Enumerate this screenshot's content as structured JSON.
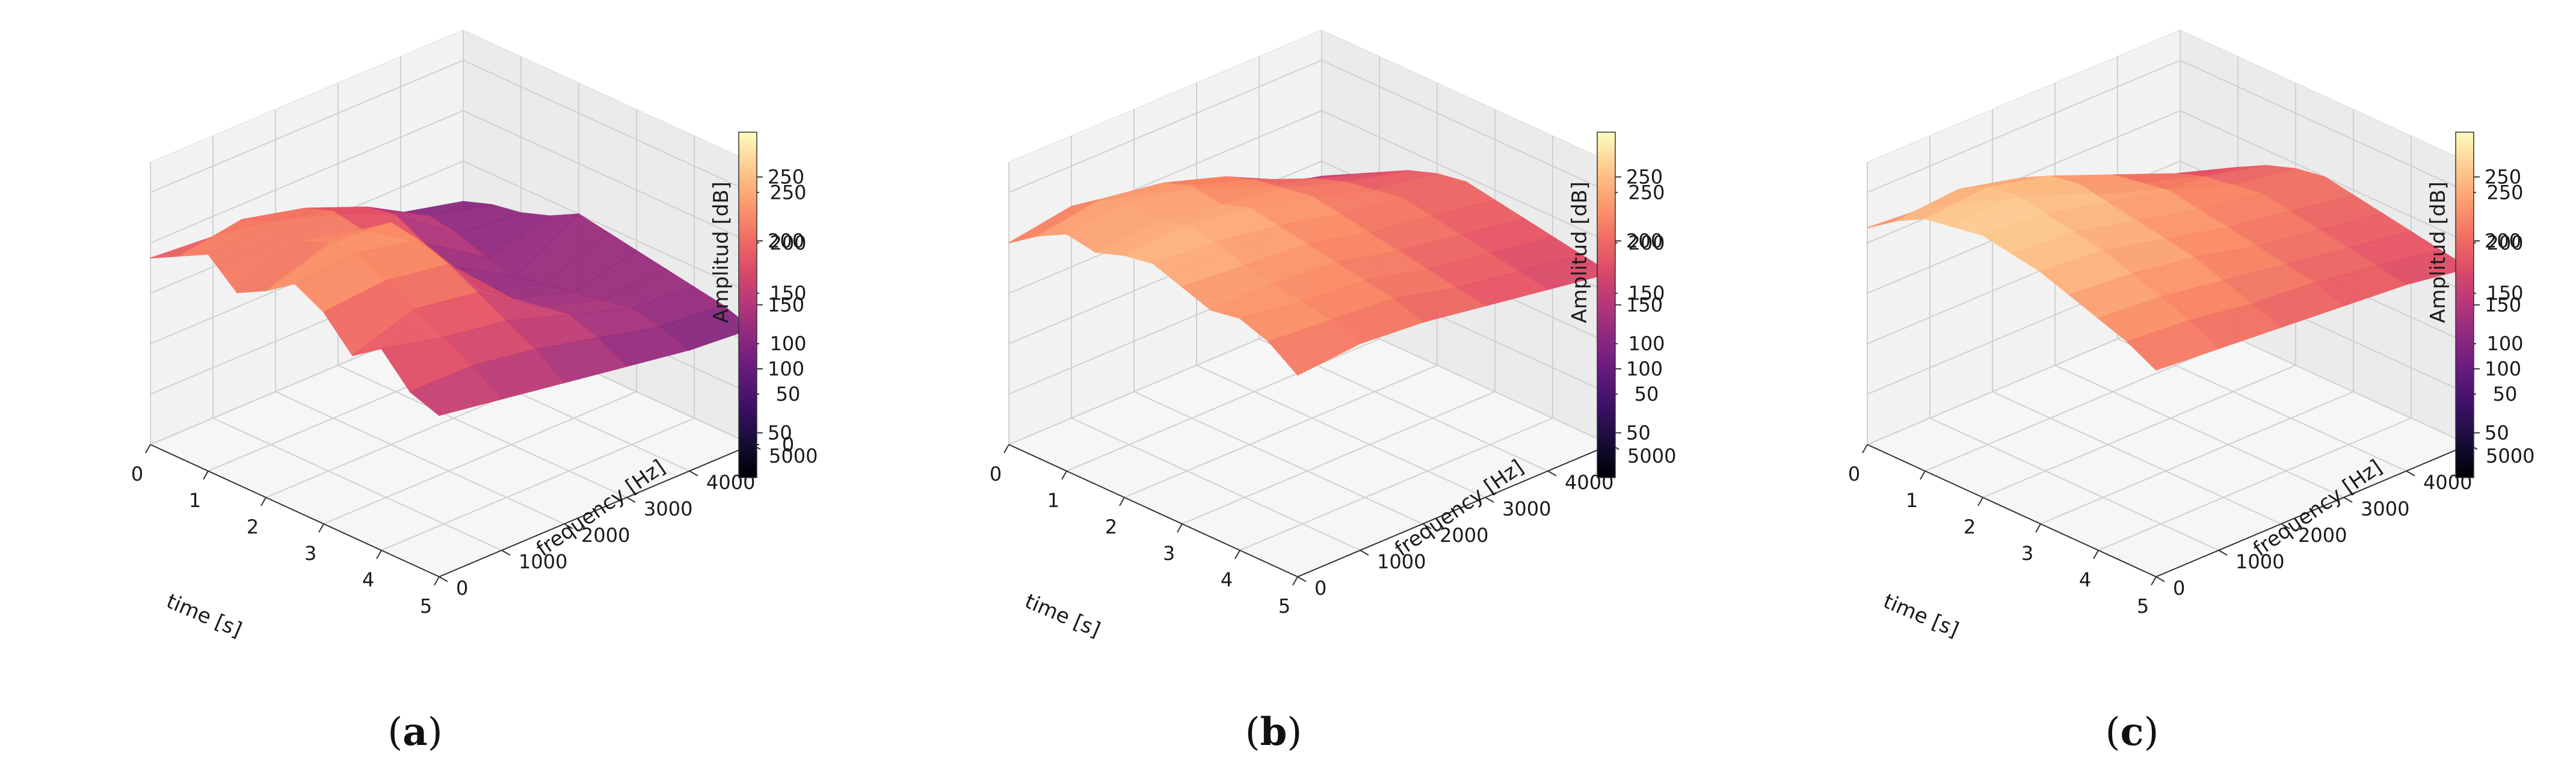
{
  "figure": {
    "panels": [
      "a",
      "b",
      "c"
    ]
  },
  "chart_data": [
    {
      "type": "surface3d",
      "panel_label": "a",
      "xlabel": "time [s]",
      "ylabel": "frequency [Hz]",
      "zlabel": "",
      "xticks": [
        0,
        1,
        2,
        3,
        4,
        5
      ],
      "yticks": [
        0,
        1000,
        2000,
        3000,
        4000,
        5000
      ],
      "zticks": [
        0,
        50,
        100,
        150,
        200,
        250
      ],
      "xlim": [
        0,
        5
      ],
      "ylim": [
        0,
        5000
      ],
      "zlim": [
        0,
        280
      ],
      "colorbar": {
        "label": "Amplitud [dB]",
        "ticks": [
          50,
          100,
          150,
          200,
          250
        ],
        "range": [
          15,
          285
        ],
        "colormap": "magma"
      },
      "surface": {
        "time_s": [
          0,
          0.5,
          1.0,
          1.5,
          2.0,
          2.5,
          3.0,
          3.5,
          4.0,
          4.5,
          5.0
        ],
        "freq_hz": [
          0,
          1000,
          2000,
          3000,
          4000,
          5000
        ],
        "amplitude_db": [
          [
            185,
            200,
            215,
            190,
            205,
            225,
            210,
            180,
            200,
            170,
            160
          ],
          [
            180,
            210,
            220,
            215,
            225,
            230,
            215,
            200,
            185,
            170,
            150
          ],
          [
            170,
            195,
            205,
            200,
            220,
            215,
            205,
            190,
            175,
            160,
            140
          ],
          [
            150,
            170,
            175,
            160,
            150,
            140,
            145,
            150,
            155,
            145,
            130
          ],
          [
            125,
            135,
            130,
            120,
            115,
            120,
            125,
            130,
            135,
            130,
            120
          ],
          [
            110,
            120,
            125,
            135,
            150,
            145,
            140,
            135,
            130,
            125,
            115
          ]
        ]
      }
    },
    {
      "type": "surface3d",
      "panel_label": "b",
      "xlabel": "time [s]",
      "ylabel": "frequency [Hz]",
      "zlabel": "",
      "xticks": [
        0,
        1,
        2,
        3,
        4,
        5
      ],
      "yticks": [
        0,
        1000,
        2000,
        3000,
        4000,
        5000
      ],
      "zticks": [
        50,
        100,
        150,
        200,
        250
      ],
      "xlim": [
        0,
        5
      ],
      "ylim": [
        0,
        5000
      ],
      "zlim": [
        0,
        280
      ],
      "colorbar": {
        "label": "Amplitud [dB]",
        "ticks": [
          50,
          100,
          150,
          200,
          250
        ],
        "range": [
          15,
          285
        ],
        "colormap": "magma"
      },
      "surface": {
        "time_s": [
          0,
          0.5,
          1.0,
          1.5,
          2.0,
          2.5,
          3.0,
          3.5,
          4.0,
          4.5,
          5.0
        ],
        "freq_hz": [
          0,
          1000,
          2000,
          3000,
          4000,
          5000
        ],
        "amplitude_db": [
          [
            200,
            220,
            235,
            230,
            240,
            245,
            235,
            225,
            230,
            220,
            200
          ],
          [
            210,
            230,
            240,
            235,
            245,
            240,
            230,
            225,
            220,
            215,
            205
          ],
          [
            195,
            220,
            230,
            225,
            235,
            230,
            225,
            220,
            215,
            210,
            200
          ],
          [
            175,
            200,
            210,
            215,
            220,
            215,
            210,
            205,
            200,
            195,
            190
          ],
          [
            150,
            170,
            185,
            195,
            200,
            205,
            200,
            195,
            190,
            185,
            180
          ],
          [
            135,
            150,
            165,
            180,
            190,
            195,
            190,
            185,
            180,
            175,
            170
          ]
        ]
      }
    },
    {
      "type": "surface3d",
      "panel_label": "c",
      "xlabel": "time [s]",
      "ylabel": "frequency [Hz]",
      "zlabel": "",
      "xticks": [
        0,
        1,
        2,
        3,
        4,
        5
      ],
      "yticks": [
        0,
        1000,
        2000,
        3000,
        4000,
        5000
      ],
      "zticks": [
        50,
        100,
        150,
        200,
        250
      ],
      "xlim": [
        0,
        5
      ],
      "ylim": [
        0,
        5000
      ],
      "zlim": [
        0,
        280
      ],
      "colorbar": {
        "label": "Amplitud [dB]",
        "ticks": [
          50,
          100,
          150,
          200,
          250
        ],
        "range": [
          15,
          285
        ],
        "colormap": "magma"
      },
      "surface": {
        "time_s": [
          0,
          0.5,
          1.0,
          1.5,
          2.0,
          2.5,
          3.0,
          3.5,
          4.0,
          4.5,
          5.0
        ],
        "freq_hz": [
          0,
          1000,
          2000,
          3000,
          4000,
          5000
        ],
        "amplitude_db": [
          [
            215,
            235,
            250,
            255,
            260,
            255,
            250,
            240,
            230,
            220,
            205
          ],
          [
            210,
            240,
            255,
            260,
            255,
            250,
            245,
            235,
            225,
            215,
            200
          ],
          [
            190,
            225,
            240,
            245,
            240,
            235,
            230,
            225,
            215,
            205,
            195
          ],
          [
            170,
            200,
            215,
            220,
            225,
            220,
            215,
            210,
            205,
            200,
            190
          ],
          [
            145,
            170,
            190,
            200,
            205,
            210,
            205,
            200,
            195,
            190,
            185
          ],
          [
            125,
            150,
            170,
            185,
            195,
            200,
            195,
            190,
            185,
            180,
            175
          ]
        ]
      }
    }
  ]
}
